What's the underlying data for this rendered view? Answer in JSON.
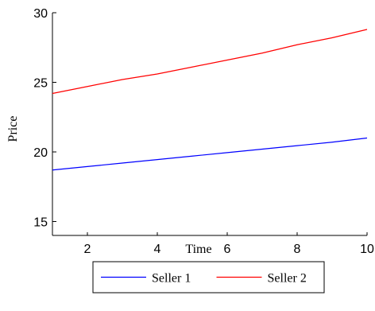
{
  "chart_data": {
    "type": "line",
    "xlabel": "Time",
    "ylabel": "Price",
    "xlim": [
      1,
      10
    ],
    "ylim": [
      14,
      30
    ],
    "xticks": [
      2,
      4,
      6,
      8,
      10
    ],
    "yticks": [
      15,
      20,
      25,
      30
    ],
    "grid": false,
    "legend_position": "bottom",
    "x": [
      1,
      2,
      3,
      4,
      5,
      6,
      7,
      8,
      9,
      10
    ],
    "series": [
      {
        "name": "Seller 1",
        "color": "#0000ff",
        "values": [
          18.7,
          18.95,
          19.2,
          19.45,
          19.7,
          19.95,
          20.2,
          20.45,
          20.7,
          21.0
        ]
      },
      {
        "name": "Seller 2",
        "color": "#ff0000",
        "values": [
          24.2,
          24.7,
          25.2,
          25.6,
          26.1,
          26.6,
          27.1,
          27.7,
          28.2,
          28.8
        ]
      }
    ]
  }
}
